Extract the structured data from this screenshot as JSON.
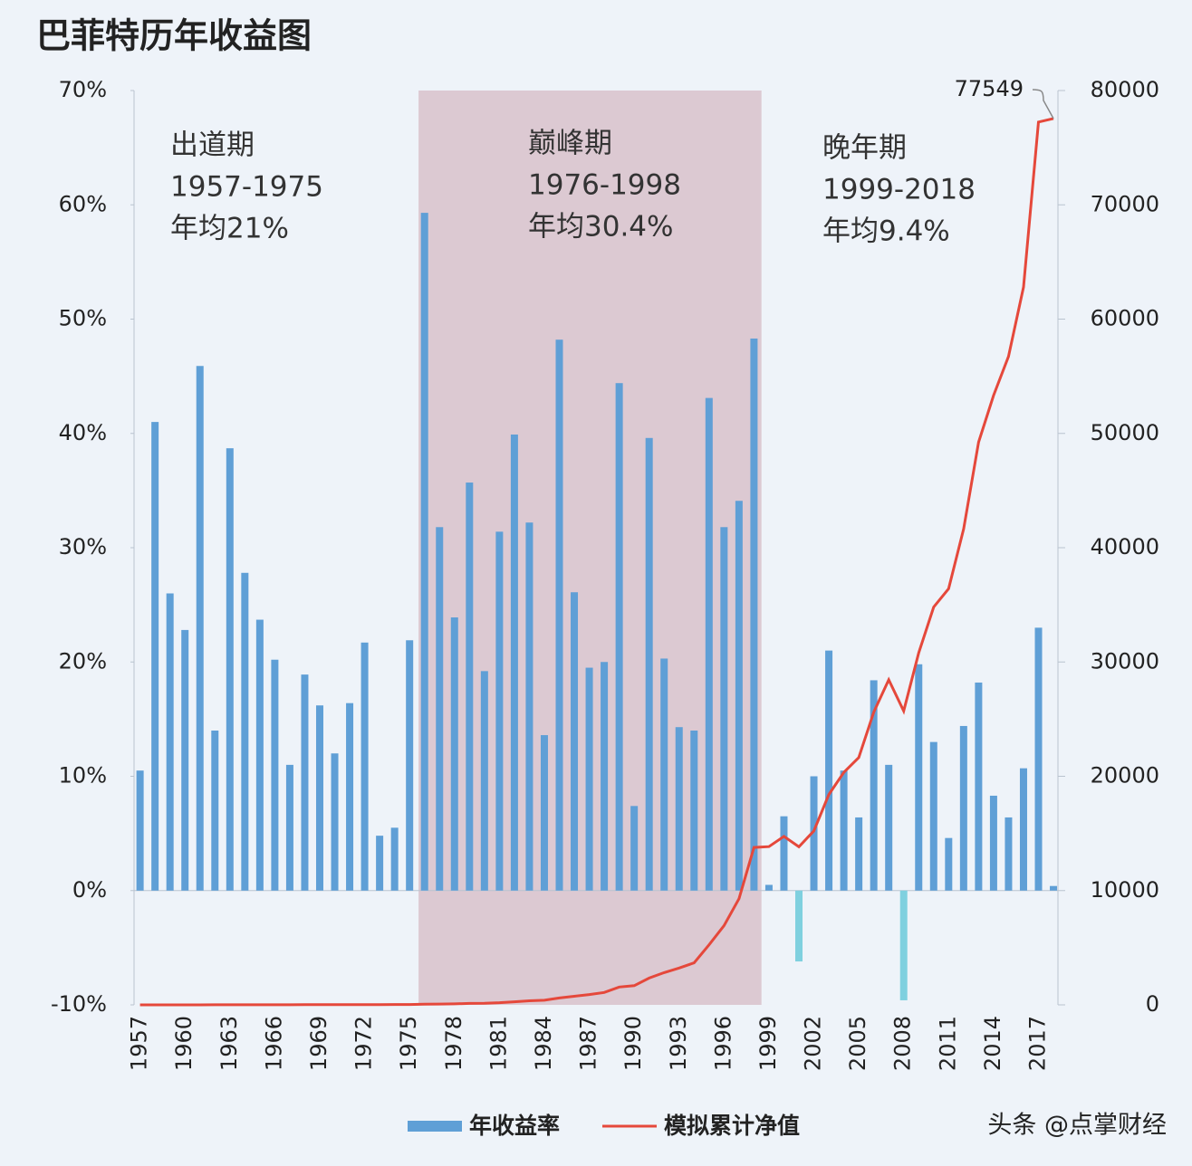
{
  "chart_data": {
    "type": "bar-line",
    "title": "巴菲特历年收益图",
    "x": [
      1957,
      1958,
      1959,
      1960,
      1961,
      1962,
      1963,
      1964,
      1965,
      1966,
      1967,
      1968,
      1969,
      1970,
      1971,
      1972,
      1973,
      1974,
      1975,
      1976,
      1977,
      1978,
      1979,
      1980,
      1981,
      1982,
      1983,
      1984,
      1985,
      1986,
      1987,
      1988,
      1989,
      1990,
      1991,
      1992,
      1993,
      1994,
      1995,
      1996,
      1997,
      1998,
      1999,
      2000,
      2001,
      2002,
      2003,
      2004,
      2005,
      2006,
      2007,
      2008,
      2009,
      2010,
      2011,
      2012,
      2013,
      2014,
      2015,
      2016,
      2017,
      2018
    ],
    "xlim": [
      1956.6,
      2018.3
    ],
    "xticks": [
      1957,
      1960,
      1963,
      1966,
      1969,
      1972,
      1975,
      1978,
      1981,
      1984,
      1987,
      1990,
      1993,
      1996,
      1999,
      2002,
      2005,
      2008,
      2011,
      2014,
      2017
    ],
    "ylim": [
      -10,
      70
    ],
    "yticks": [
      {
        "value": -10,
        "label": "-10%"
      },
      {
        "value": 0,
        "label": "0%"
      },
      {
        "value": 10,
        "label": "10%"
      },
      {
        "value": 20,
        "label": "20%"
      },
      {
        "value": 30,
        "label": "30%"
      },
      {
        "value": 40,
        "label": "40%"
      },
      {
        "value": 50,
        "label": "50%"
      },
      {
        "value": 60,
        "label": "60%"
      },
      {
        "value": 70,
        "label": "70%"
      }
    ],
    "y2lim": [
      0,
      80000
    ],
    "y2ticks": [
      0,
      10000,
      20000,
      30000,
      40000,
      50000,
      60000,
      70000,
      80000
    ],
    "shade": {
      "from": 1975.6,
      "to": 1998.5,
      "color": "#dcc9d2"
    },
    "series": [
      {
        "name": "年收益率",
        "type": "bar",
        "color": "#5f9fd6",
        "negative_color": "#7fd0df",
        "values": [
          10.5,
          41,
          26,
          22.8,
          45.9,
          14,
          38.7,
          27.8,
          23.7,
          20.2,
          11,
          18.9,
          16.2,
          12,
          16.4,
          21.7,
          4.8,
          5.5,
          21.9,
          59.3,
          31.8,
          23.9,
          35.7,
          19.2,
          31.4,
          39.9,
          32.2,
          13.6,
          48.2,
          26.1,
          19.5,
          20,
          44.4,
          7.4,
          39.6,
          20.3,
          14.3,
          14,
          43.1,
          31.8,
          34.1,
          48.3,
          0.5,
          6.5,
          -6.2,
          10,
          21,
          10.5,
          6.4,
          18.4,
          11,
          -9.6,
          19.8,
          13,
          4.6,
          14.4,
          18.2,
          8.3,
          6.4,
          10.7,
          23,
          0.4
        ]
      },
      {
        "name": "模拟累计净值",
        "type": "line",
        "axis": "y2",
        "color": "#e5483b",
        "values": [
          1.1,
          1.6,
          2,
          2.4,
          3.5,
          4,
          5.6,
          7.1,
          8.8,
          10.6,
          11.8,
          14,
          16.3,
          18.2,
          21.2,
          25.8,
          27,
          28.5,
          35,
          55,
          73,
          90,
          123,
          146,
          192,
          269,
          356,
          404,
          599,
          755,
          902,
          1082,
          1562,
          1678,
          2342,
          2818,
          3221,
          3672,
          5255,
          6926,
          9288,
          13774,
          13843,
          14743,
          13829,
          15212,
          18407,
          20340,
          21642,
          25624,
          28442,
          25712,
          30803,
          34807,
          36408,
          41651,
          49232,
          53318,
          56730,
          62800,
          77240,
          77549
        ]
      }
    ],
    "annotations": [
      {
        "lines": [
          "出道期",
          "1957-1975",
          "年均21%"
        ]
      },
      {
        "lines": [
          "巅峰期",
          "1976-1998",
          "年均30.4%"
        ]
      },
      {
        "lines": [
          "晚年期",
          "1999-2018",
          "年均9.4%"
        ]
      }
    ],
    "watermark": "头条 @点掌财经"
  }
}
